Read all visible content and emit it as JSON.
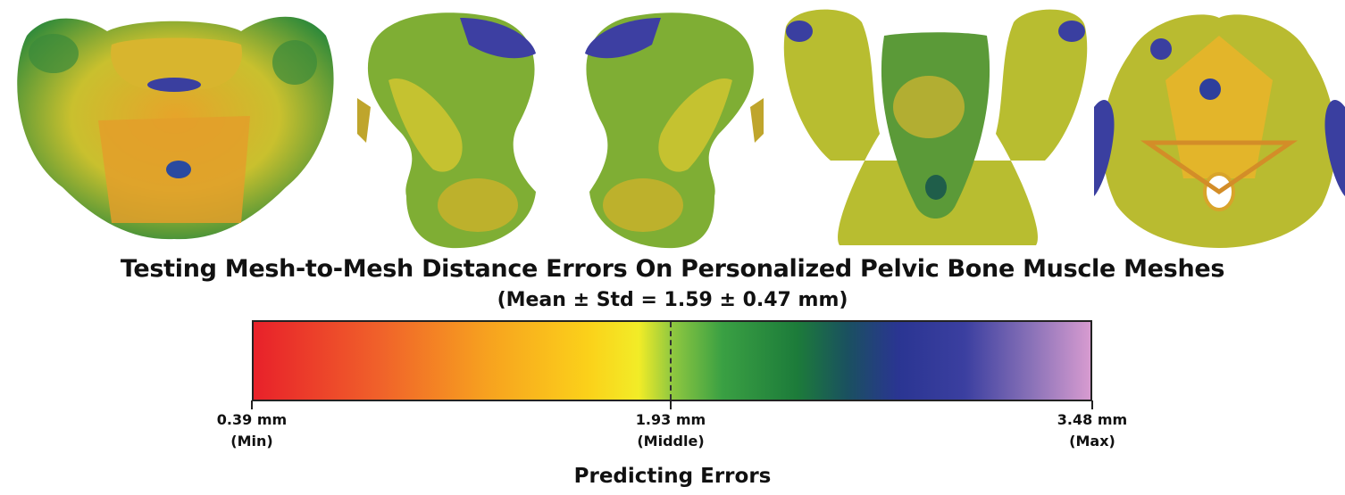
{
  "figure": {
    "title": "Testing Mesh-to-Mesh Distance Errors On Personalized Pelvic Bone Muscle Meshes",
    "subtitle": "(Mean ± Std = 1.59 ± 0.47 mm)"
  },
  "colorbar": {
    "colors": [
      "#e8212a",
      "#f7a21f",
      "#f2ec27",
      "#1c7b3a",
      "#2a3592",
      "#d79bd0"
    ],
    "min": {
      "value": "0.39 mm",
      "label": "(Min)"
    },
    "middle": {
      "value": "1.93 mm",
      "label": "(Middle)"
    },
    "max": {
      "value": "3.48 mm",
      "label": "(Max)"
    },
    "axis_title": "Predicting Errors"
  },
  "views": [
    {
      "name": "anterior view"
    },
    {
      "name": "left lateral view"
    },
    {
      "name": "right lateral view"
    },
    {
      "name": "posterior view"
    },
    {
      "name": "inferior view"
    }
  ]
}
